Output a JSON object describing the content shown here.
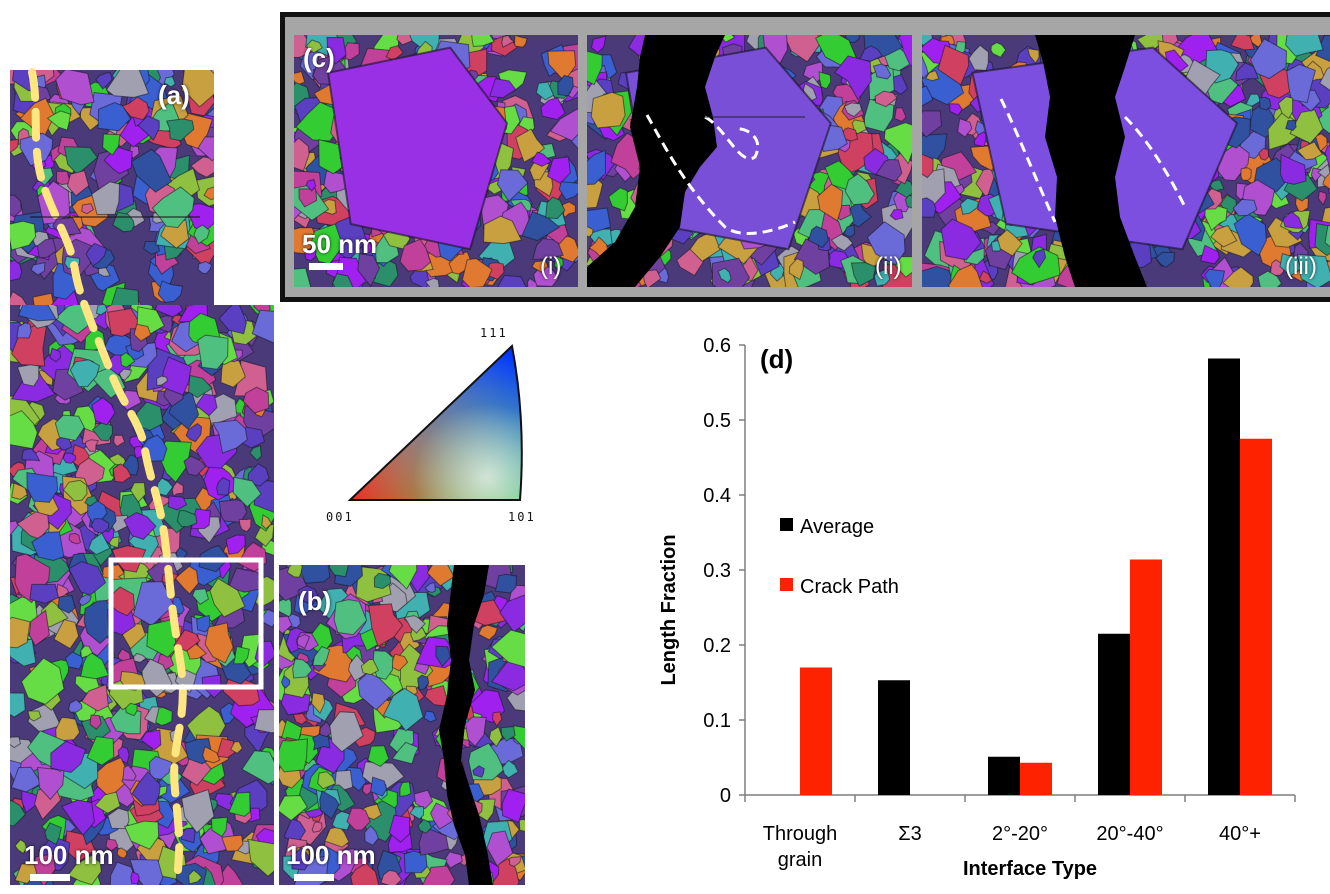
{
  "panels": {
    "a": {
      "label": "(a)",
      "scale": "100 nm"
    },
    "b": {
      "label": "(b)",
      "scale": "100 nm"
    },
    "c": {
      "label": "(c)",
      "scale": "50 nm",
      "sub_labels": [
        "(i)",
        "(ii)",
        "(iii)"
      ]
    }
  },
  "ipf_key": {
    "top": "111",
    "bottom_left": "001",
    "bottom_right": "101"
  },
  "chart_data": {
    "type": "bar",
    "panel_label": "(d)",
    "categories": [
      [
        "Through",
        "grain"
      ],
      [
        "Σ3"
      ],
      [
        "2°-20°"
      ],
      [
        "20°-40°"
      ],
      [
        "40°+"
      ]
    ],
    "series": [
      {
        "name": "Average",
        "color": "#000000",
        "values": [
          0,
          0.153,
          0.051,
          0.215,
          0.582
        ]
      },
      {
        "name": "Crack Path",
        "color": "#ff2200",
        "values": [
          0.17,
          0,
          0.043,
          0.314,
          0.475
        ]
      }
    ],
    "xlabel": "Interface Type",
    "ylabel": "Length Fraction",
    "ylim": [
      0,
      0.6
    ],
    "yticks": [
      "0",
      "0.1",
      "0.2",
      "0.3",
      "0.4",
      "0.5",
      "0.6"
    ],
    "grid": false,
    "legend_position": "left-middle"
  },
  "colors": {
    "crack_trace": "#ffe680",
    "boundary_trace": "#ffffff",
    "frame": "#111111",
    "frame_fill": "#a6a6a6"
  }
}
